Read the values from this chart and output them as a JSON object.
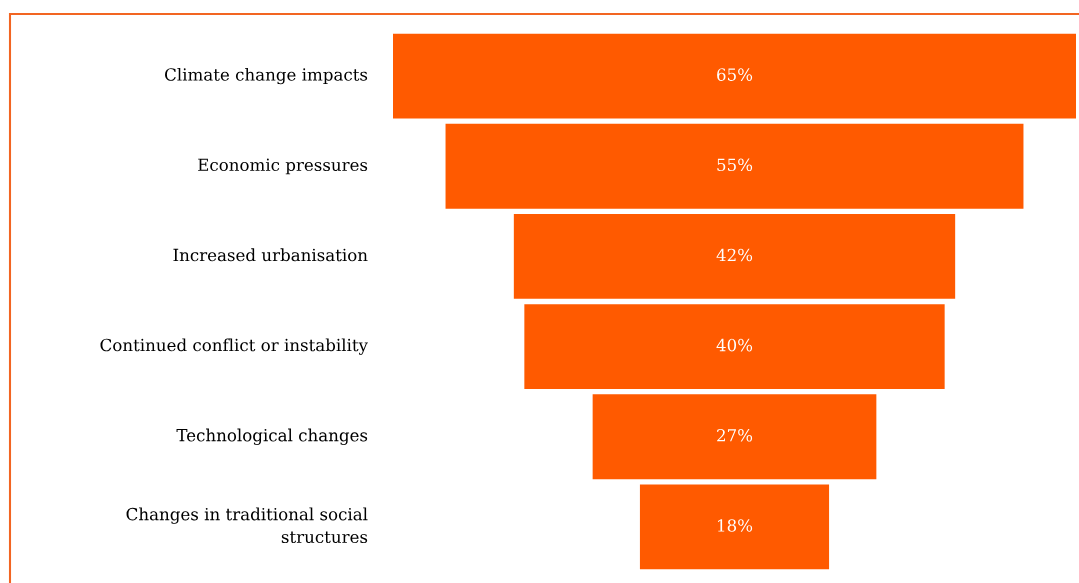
{
  "chart_data": {
    "type": "other",
    "categories": [
      "Climate change impacts",
      "Economic pressures",
      "Increased urbanisation",
      "Continued conflict or instability",
      "Technological changes",
      "Changes in traditional social structures"
    ],
    "values": [
      65,
      55,
      42,
      40,
      27,
      18
    ],
    "value_labels": [
      "65%",
      "55%",
      "42%",
      "40%",
      "27%",
      "18%"
    ],
    "color": "#ff5a00"
  }
}
